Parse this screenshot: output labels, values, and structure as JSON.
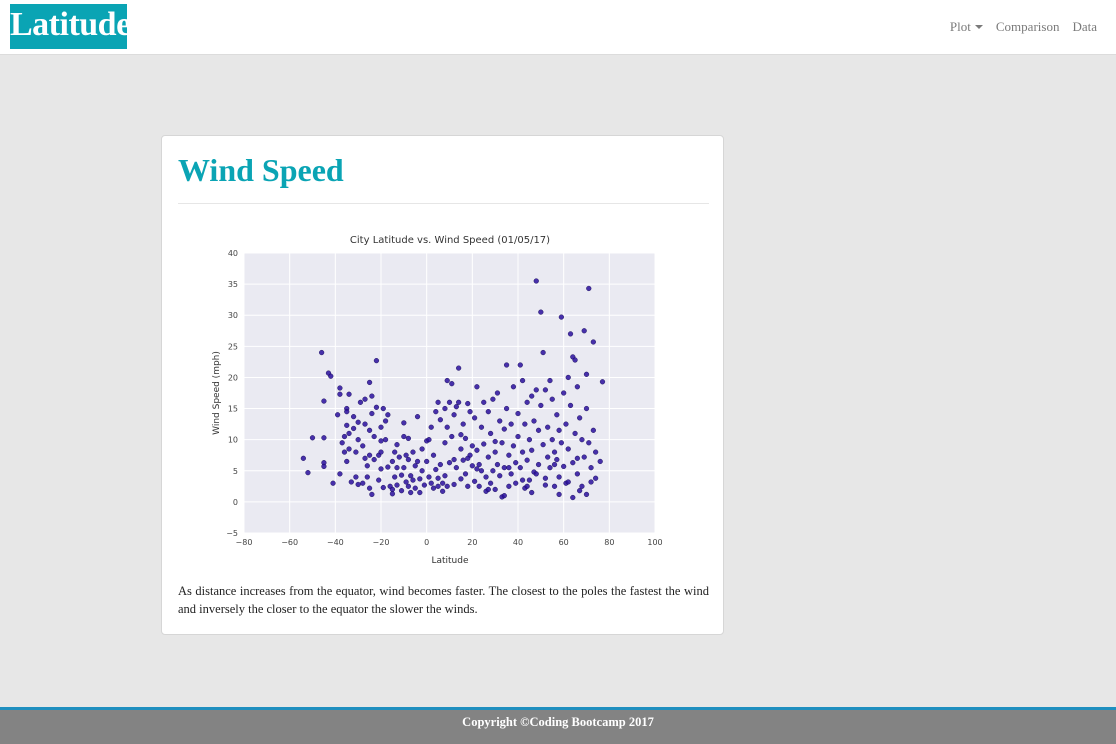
{
  "navbar": {
    "brand": "Latitude",
    "links": [
      {
        "label": "Plot",
        "dropdown": true
      },
      {
        "label": "Comparison"
      },
      {
        "label": "Data"
      }
    ]
  },
  "card": {
    "title": "Wind Speed",
    "description": "As distance increases from the equator, wind becomes faster. The closest to the poles the fastest the wind and inversely the closer to the equator the slower the winds."
  },
  "footer": {
    "text": "Copyright ©Coding Bootcamp 2017"
  },
  "colors": {
    "accent": "#0aa4b4",
    "footer_bg": "#838383",
    "footer_border": "#1f8fbf",
    "plot_bg": "#eaeaf2",
    "point": "#2a0f9e"
  },
  "chart_data": {
    "type": "scatter",
    "title": "City Latitude vs. Wind Speed (01/05/17)",
    "xlabel": "Latitude",
    "ylabel": "Wind Speed (mph)",
    "xlim": [
      -80,
      100
    ],
    "ylim": [
      -5,
      40
    ],
    "xticks": [
      -80,
      -60,
      -40,
      -20,
      0,
      20,
      40,
      60,
      80,
      100
    ],
    "yticks": [
      -5,
      0,
      5,
      10,
      15,
      20,
      25,
      30,
      35,
      40
    ],
    "grid": true,
    "points": [
      [
        -54,
        7
      ],
      [
        -52,
        4.7
      ],
      [
        -50,
        10.3
      ],
      [
        -46,
        24
      ],
      [
        -45,
        16.2
      ],
      [
        -45,
        6.3
      ],
      [
        -45,
        5.7
      ],
      [
        -45,
        10.3
      ],
      [
        -43,
        20.7
      ],
      [
        -42,
        20.2
      ],
      [
        -41,
        3
      ],
      [
        -39,
        14
      ],
      [
        -38,
        18.3
      ],
      [
        -38,
        17.3
      ],
      [
        -37,
        9.5
      ],
      [
        -36,
        8
      ],
      [
        -35,
        15
      ],
      [
        -35,
        14.5
      ],
      [
        -35,
        12.3
      ],
      [
        -35,
        6.5
      ],
      [
        -34,
        17.3
      ],
      [
        -34,
        11
      ],
      [
        -34,
        8.5
      ],
      [
        -33,
        3.2
      ],
      [
        -32,
        13.7
      ],
      [
        -32,
        11.8
      ],
      [
        -31,
        8
      ],
      [
        -31,
        4
      ],
      [
        -30,
        2.8
      ],
      [
        -30,
        12.8
      ],
      [
        -29,
        16
      ],
      [
        -28,
        9
      ],
      [
        -28,
        3
      ],
      [
        -27,
        12.5
      ],
      [
        -27,
        7
      ],
      [
        -26,
        5.8
      ],
      [
        -26,
        4
      ],
      [
        -25,
        19.2
      ],
      [
        -25,
        11.5
      ],
      [
        -25,
        7.5
      ],
      [
        -24,
        14.2
      ],
      [
        -24,
        1.2
      ],
      [
        -24,
        17
      ],
      [
        -23,
        10.5
      ],
      [
        -23,
        6.8
      ],
      [
        -22,
        22.7
      ],
      [
        -22,
        15.2
      ],
      [
        -21,
        7.5
      ],
      [
        -21,
        3.5
      ],
      [
        -20,
        12
      ],
      [
        -20,
        8
      ],
      [
        -20,
        5.3
      ],
      [
        -19,
        15
      ],
      [
        -19,
        2.3
      ],
      [
        -18,
        13
      ],
      [
        -18,
        10
      ],
      [
        -17,
        14
      ],
      [
        -17,
        5.6
      ],
      [
        -16,
        2.5
      ],
      [
        -15,
        2
      ],
      [
        -15,
        1.3
      ],
      [
        -14,
        8
      ],
      [
        -14,
        4
      ],
      [
        -13,
        5.5
      ],
      [
        -13,
        2.7
      ],
      [
        -12,
        7.2
      ],
      [
        -11,
        4.3
      ],
      [
        -11,
        1.8
      ],
      [
        -10,
        12.7
      ],
      [
        -10,
        10.5
      ],
      [
        -10,
        5.5
      ],
      [
        -9,
        3.2
      ],
      [
        -9,
        7.5
      ],
      [
        -8,
        10.2
      ],
      [
        -8,
        6.8
      ],
      [
        -8,
        2.5
      ],
      [
        -7,
        4.2
      ],
      [
        -7,
        1.5
      ],
      [
        -6,
        8
      ],
      [
        -6,
        3.5
      ],
      [
        -5,
        5.8
      ],
      [
        -5,
        2.2
      ],
      [
        -4,
        13.7
      ],
      [
        -4,
        6.5
      ],
      [
        -3,
        3.7
      ],
      [
        -3,
        1.5
      ],
      [
        -2,
        8.5
      ],
      [
        -2,
        5
      ],
      [
        -1,
        2.7
      ],
      [
        0,
        9.8
      ],
      [
        0,
        6.5
      ],
      [
        1,
        10
      ],
      [
        1,
        4
      ],
      [
        2,
        12
      ],
      [
        2,
        3
      ],
      [
        3,
        7.5
      ],
      [
        3,
        2.2
      ],
      [
        4,
        14.5
      ],
      [
        4,
        5.2
      ],
      [
        5,
        16
      ],
      [
        5,
        2.5
      ],
      [
        6,
        13.2
      ],
      [
        6,
        6
      ],
      [
        7,
        3
      ],
      [
        7,
        1.7
      ],
      [
        8,
        15
      ],
      [
        8,
        9.5
      ],
      [
        8,
        4.2
      ],
      [
        9,
        19.5
      ],
      [
        9,
        12
      ],
      [
        9,
        2.5
      ],
      [
        10,
        16
      ],
      [
        10,
        6.3
      ],
      [
        11,
        19
      ],
      [
        11,
        10.5
      ],
      [
        12,
        14
      ],
      [
        12,
        2.8
      ],
      [
        13,
        15.3
      ],
      [
        13,
        5.5
      ],
      [
        14,
        21.5
      ],
      [
        14,
        16
      ],
      [
        15,
        8.5
      ],
      [
        15,
        3.7
      ],
      [
        16,
        12.5
      ],
      [
        16,
        6.7
      ],
      [
        17,
        10.2
      ],
      [
        17,
        4.5
      ],
      [
        18,
        15.8
      ],
      [
        18,
        2.5
      ],
      [
        19,
        14.5
      ],
      [
        19,
        7.5
      ],
      [
        20,
        9
      ],
      [
        20,
        5.8
      ],
      [
        21,
        13.5
      ],
      [
        21,
        3.3
      ],
      [
        22,
        18.5
      ],
      [
        22,
        8.3
      ],
      [
        23,
        6
      ],
      [
        23,
        2.5
      ],
      [
        24,
        12
      ],
      [
        24,
        5
      ],
      [
        25,
        16
      ],
      [
        25,
        9.3
      ],
      [
        26,
        4
      ],
      [
        26,
        1.7
      ],
      [
        27,
        14.5
      ],
      [
        27,
        7.2
      ],
      [
        28,
        11
      ],
      [
        28,
        3
      ],
      [
        29,
        16.5
      ],
      [
        29,
        5
      ],
      [
        30,
        8
      ],
      [
        30,
        2
      ],
      [
        31,
        17.5
      ],
      [
        31,
        6
      ],
      [
        32,
        13
      ],
      [
        32,
        4.2
      ],
      [
        33,
        9.5
      ],
      [
        33,
        0.8
      ],
      [
        34,
        11.7
      ],
      [
        34,
        5.5
      ],
      [
        35,
        22
      ],
      [
        35,
        15
      ],
      [
        36,
        7.5
      ],
      [
        36,
        2.5
      ],
      [
        37,
        12.5
      ],
      [
        37,
        4.5
      ],
      [
        38,
        18.5
      ],
      [
        38,
        9
      ],
      [
        39,
        6.3
      ],
      [
        39,
        3
      ],
      [
        40,
        14.2
      ],
      [
        40,
        10.5
      ],
      [
        41,
        22
      ],
      [
        41,
        5.5
      ],
      [
        42,
        19.5
      ],
      [
        42,
        8
      ],
      [
        43,
        2.2
      ],
      [
        43,
        12.5
      ],
      [
        44,
        16
      ],
      [
        44,
        6.7
      ],
      [
        45,
        10
      ],
      [
        45,
        3.5
      ],
      [
        46,
        17
      ],
      [
        46,
        8.3
      ],
      [
        47,
        13
      ],
      [
        47,
        4.8
      ],
      [
        48,
        35.5
      ],
      [
        48,
        18
      ],
      [
        49,
        11.5
      ],
      [
        49,
        6
      ],
      [
        50,
        30.5
      ],
      [
        50,
        15.5
      ],
      [
        51,
        24
      ],
      [
        51,
        9.2
      ],
      [
        52,
        18
      ],
      [
        52,
        3.8
      ],
      [
        53,
        12
      ],
      [
        53,
        7.2
      ],
      [
        54,
        19.5
      ],
      [
        54,
        5.5
      ],
      [
        55,
        16.5
      ],
      [
        55,
        10
      ],
      [
        56,
        8
      ],
      [
        56,
        2.5
      ],
      [
        57,
        14
      ],
      [
        57,
        6.8
      ],
      [
        58,
        11.5
      ],
      [
        58,
        4
      ],
      [
        59,
        29.7
      ],
      [
        59,
        9.5
      ],
      [
        60,
        17.5
      ],
      [
        60,
        5.7
      ],
      [
        61,
        12.5
      ],
      [
        61,
        3
      ],
      [
        62,
        20
      ],
      [
        62,
        8.5
      ],
      [
        63,
        27
      ],
      [
        63,
        15.5
      ],
      [
        64,
        23.3
      ],
      [
        64,
        6.3
      ],
      [
        65,
        22.8
      ],
      [
        65,
        11
      ],
      [
        66,
        18.5
      ],
      [
        66,
        4.5
      ],
      [
        67,
        13.5
      ],
      [
        67,
        1.8
      ],
      [
        68,
        10
      ],
      [
        68,
        2.5
      ],
      [
        69,
        27.5
      ],
      [
        69,
        7.2
      ],
      [
        70,
        20.5
      ],
      [
        70,
        15
      ],
      [
        71,
        34.3
      ],
      [
        71,
        9.5
      ],
      [
        72,
        5.5
      ],
      [
        72,
        3.2
      ],
      [
        73,
        25.7
      ],
      [
        73,
        11.5
      ],
      [
        74,
        8
      ],
      [
        74,
        3.8
      ],
      [
        76,
        6.5
      ],
      [
        77,
        19.3
      ],
      [
        48,
        4.5
      ],
      [
        52,
        2.7
      ],
      [
        56,
        6
      ],
      [
        44,
        2.5
      ],
      [
        36,
        5.5
      ],
      [
        30,
        9.7
      ],
      [
        22,
        5.3
      ],
      [
        18,
        7
      ],
      [
        12,
        6.8
      ],
      [
        -30,
        10
      ],
      [
        -27,
        16.5
      ],
      [
        -20,
        9.8
      ],
      [
        -13,
        9.2
      ],
      [
        62,
        3.2
      ],
      [
        66,
        7
      ],
      [
        58,
        1.2
      ],
      [
        42,
        3.5
      ],
      [
        46,
        1.5
      ],
      [
        27,
        2
      ],
      [
        15,
        10.8
      ],
      [
        5,
        3.8
      ],
      [
        -15,
        6.5
      ],
      [
        -36,
        10.5
      ],
      [
        -38,
        4.5
      ],
      [
        -25,
        2.2
      ],
      [
        34,
        1
      ],
      [
        64,
        0.7
      ],
      [
        70,
        1.2
      ]
    ]
  }
}
